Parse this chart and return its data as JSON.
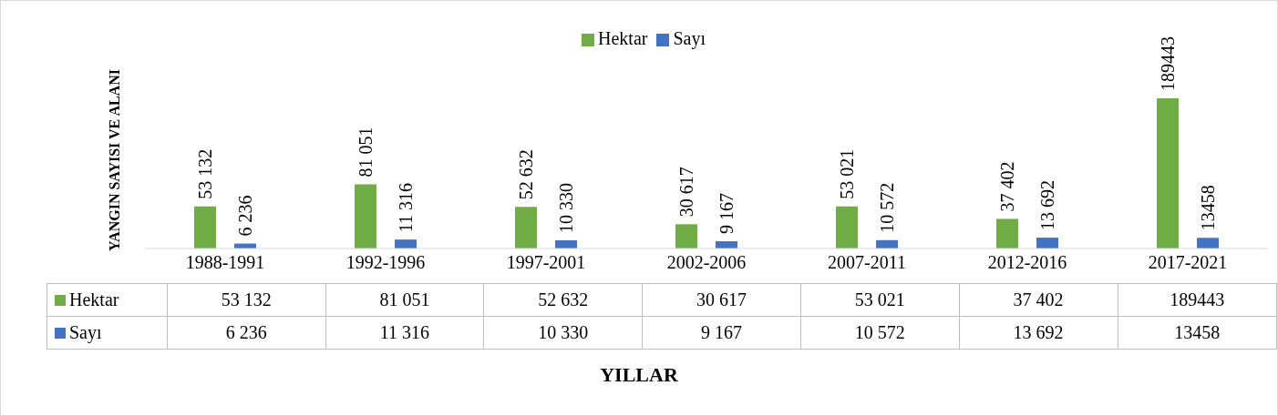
{
  "chart_data": {
    "type": "bar",
    "ylabel": "YANGIN SAYISI VE ALANI",
    "xlabel": "YILLAR",
    "legend": "top",
    "categories": [
      "1988-1991",
      "1992-1996",
      "1997-2001",
      "2002-2006",
      "2007-2011",
      "2012-2016",
      "2017-2021"
    ],
    "series": [
      {
        "name": "Hektar",
        "color": "#70ad47",
        "values": [
          53132,
          81051,
          52632,
          30617,
          53021,
          37402,
          189443
        ],
        "value_labels": [
          "53 132",
          "81 051",
          "52 632",
          "30 617",
          "53 021",
          "37 402",
          "189443"
        ]
      },
      {
        "name": "Sayı",
        "color": "#4472c4",
        "values": [
          6236,
          11316,
          10330,
          9167,
          10572,
          13692,
          13458
        ],
        "value_labels": [
          "6 236",
          "11 316",
          "10 330",
          "9 167",
          "10 572",
          "13 692",
          "13458"
        ]
      }
    ]
  }
}
